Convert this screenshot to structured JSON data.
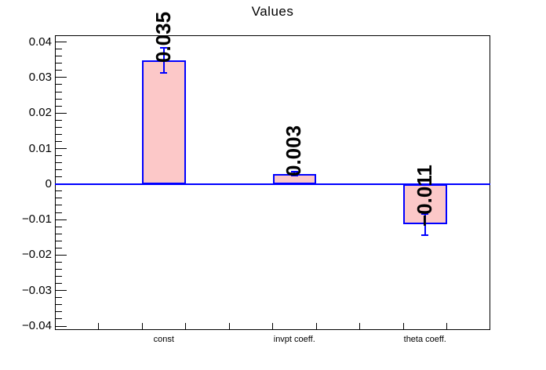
{
  "window": {
    "title": "Values"
  },
  "colors": {
    "background": "#ffffff",
    "bar_fill": "#fcc8c8",
    "bar_border": "#0000ff",
    "error_bar": "#0000ff",
    "zero_line": "#0000ff",
    "axis": "#000000",
    "text": "#000000"
  },
  "chart_data": {
    "type": "bar",
    "title": "Values",
    "xlabel": "",
    "ylabel": "",
    "categories": [
      "const",
      "invpt coeff.",
      "theta coeff."
    ],
    "values": [
      0.0349,
      0.0029,
      -0.0114
    ],
    "errors": [
      0.0035,
      0.0006,
      0.0029
    ],
    "value_labels": [
      "0.035",
      "0.003",
      "−0.011"
    ],
    "n_bins": 10,
    "bar_bins": [
      3,
      6,
      9
    ],
    "ylim": [
      -0.0411,
      0.0419
    ],
    "y_major_step": 0.01,
    "y_minor_step": 0.002,
    "y_tick_labels": [
      "0.04",
      "0.03",
      "0.02",
      "0.01",
      "0",
      "−0.01",
      "−0.02",
      "−0.03",
      "−0.04"
    ],
    "y_tick_values": [
      0.04,
      0.03,
      0.02,
      0.01,
      0,
      -0.01,
      -0.02,
      -0.03,
      -0.04
    ],
    "grid": false,
    "legend": null
  }
}
